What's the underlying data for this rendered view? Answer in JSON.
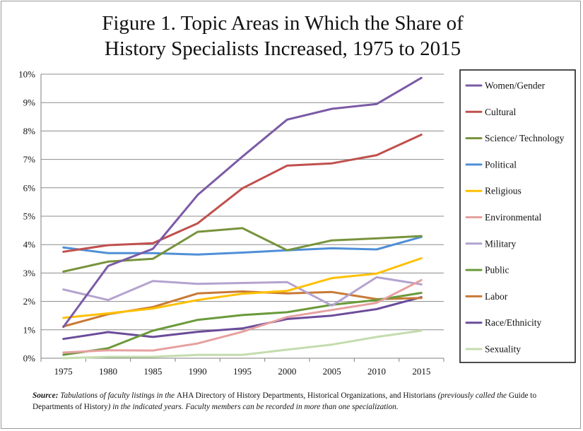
{
  "chart_data": {
    "type": "line",
    "title_lines": [
      "Figure 1. Topic Areas in Which the Share of",
      "History Specialists Increased, 1975 to 2015"
    ],
    "categories": [
      "1975",
      "1980",
      "1985",
      "1990",
      "1995",
      "2000",
      "2005",
      "2010",
      "2015"
    ],
    "y_ticks": [
      "0%",
      "1%",
      "2%",
      "3%",
      "4%",
      "5%",
      "6%",
      "7%",
      "8%",
      "9%",
      "10%"
    ],
    "ylim": [
      0,
      10
    ],
    "y_unit": "%",
    "grid": true,
    "legend_position": "right",
    "series": [
      {
        "name": "Women/Gender",
        "color": "#7b5aa6",
        "values": [
          1.1,
          3.25,
          3.85,
          5.75,
          7.1,
          8.4,
          8.78,
          8.95,
          9.87
        ]
      },
      {
        "name": "Cultural",
        "color": "#c0504d",
        "values": [
          3.75,
          3.98,
          4.05,
          4.75,
          5.98,
          6.78,
          6.86,
          7.15,
          7.87
        ]
      },
      {
        "name": "Science/ Technology",
        "color": "#77933c",
        "values": [
          3.05,
          3.4,
          3.5,
          4.45,
          4.58,
          3.8,
          4.15,
          4.22,
          4.3
        ]
      },
      {
        "name": "Political",
        "color": "#4f8fd6",
        "values": [
          3.9,
          3.7,
          3.7,
          3.65,
          3.72,
          3.8,
          3.87,
          3.83,
          4.27
        ]
      },
      {
        "name": "Religious",
        "color": "#ffc000",
        "values": [
          1.42,
          1.58,
          1.75,
          2.05,
          2.27,
          2.37,
          2.82,
          2.98,
          3.52
        ]
      },
      {
        "name": "Environmental",
        "color": "#e6a0a0",
        "values": [
          0.2,
          0.28,
          0.27,
          0.52,
          0.93,
          1.45,
          1.7,
          1.95,
          2.75
        ]
      },
      {
        "name": "Military",
        "color": "#b3a3cf",
        "values": [
          2.42,
          2.05,
          2.72,
          2.62,
          2.65,
          2.68,
          1.85,
          2.85,
          2.6
        ]
      },
      {
        "name": "Public",
        "color": "#6a9a3a",
        "values": [
          0.12,
          0.35,
          0.97,
          1.35,
          1.52,
          1.62,
          1.88,
          2.05,
          2.3
        ]
      },
      {
        "name": "Labor",
        "color": "#c87a35",
        "values": [
          1.12,
          1.55,
          1.8,
          2.28,
          2.35,
          2.28,
          2.33,
          2.08,
          2.12
        ]
      },
      {
        "name": "Race/Ethnicity",
        "color": "#6b4c9a",
        "values": [
          0.68,
          0.92,
          0.75,
          0.93,
          1.05,
          1.38,
          1.5,
          1.73,
          2.15
        ]
      },
      {
        "name": "Sexuality",
        "color": "#c4dcae",
        "values": [
          0.0,
          0.05,
          0.05,
          0.12,
          0.12,
          0.3,
          0.48,
          0.75,
          0.97
        ]
      }
    ]
  },
  "source_note": {
    "label": "Source:",
    "part1": " Tabulations of faculty listings in the ",
    "title1": "AHA Directory of History Departments, Historical Organizations, and Historians",
    "part2": " (previously called the ",
    "title2": "Guide to  Departments of History",
    "part3": ") in the indicated years.  Faculty members can be recorded in more than one specialization."
  }
}
